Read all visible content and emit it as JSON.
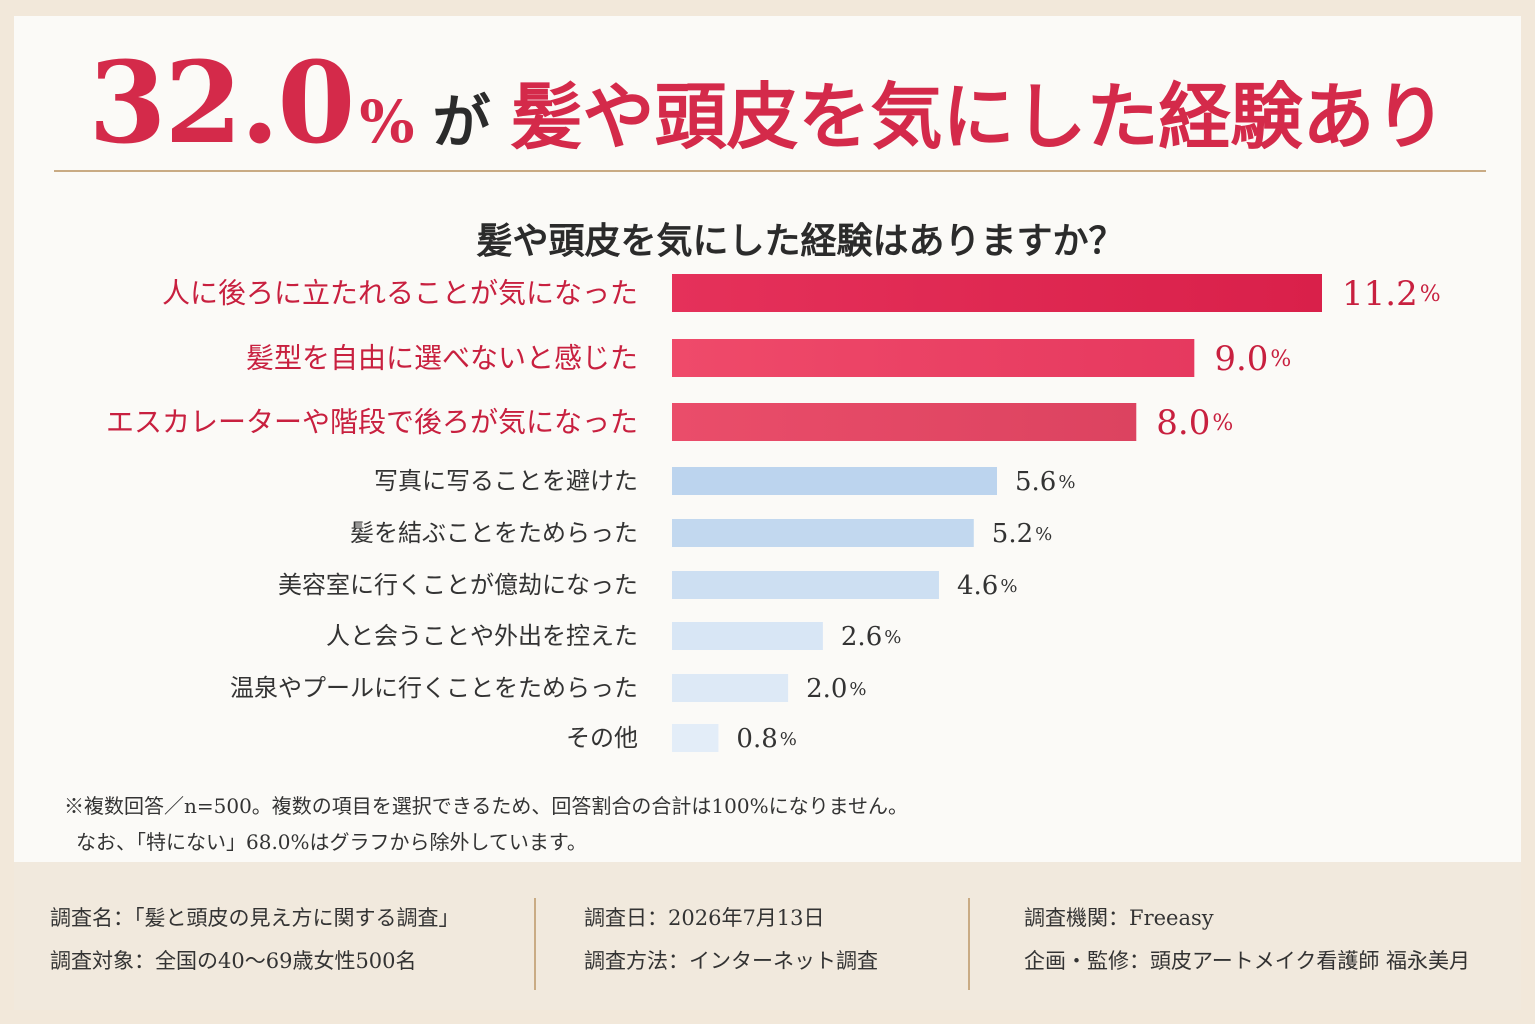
{
  "headline": {
    "number": "32.0",
    "percent": "%",
    "particle": "が",
    "text": "髪や頭皮を気にした経験あり"
  },
  "colors": {
    "highlight": "#e02a52",
    "normal": "#c4d8ef",
    "title_red": "#d42a4a",
    "label_red": "#c8203f"
  },
  "chart_data": {
    "type": "bar",
    "orientation": "horizontal",
    "title": "髪や頭皮を気にした経験はありますか？",
    "unit": "%",
    "categories": [
      "人に後ろに立たれることが気になった",
      "髪型を自由に選べないと感じた",
      "エスカレーターや階段で後ろが気になった",
      "写真に写ることを避けた",
      "髪を結ぶことをためらった",
      "美容室に行くことが億劫になった",
      "人と会うことや外出を控えた",
      "温泉やプールに行くことをためらった",
      "その他"
    ],
    "values": [
      11.2,
      9.0,
      8.0,
      5.6,
      5.2,
      4.6,
      2.6,
      2.0,
      0.8
    ],
    "value_labels": [
      "11.2",
      "9.0",
      "8.0",
      "5.6",
      "5.2",
      "4.6",
      "2.6",
      "2.0",
      "0.8"
    ],
    "highlighted": [
      true,
      true,
      true,
      false,
      false,
      false,
      false,
      false,
      false
    ],
    "xlim": [
      0,
      11.2
    ],
    "grid": false,
    "legend": "none"
  },
  "notes": [
    "※複数回答／n=500。複数の項目を選択できるため、回答割合の合計は100%になりません。",
    "なお、「特にない」68.0%はグラフから除外しています。"
  ],
  "footer": {
    "col1": [
      "調査名：「髪と頭皮の見え方に関する調査」",
      "調査対象：全国の40〜69歳女性500名"
    ],
    "col2": [
      "調査日：2026年7月13日",
      "調査方法：インターネット調査"
    ],
    "col3": [
      "調査機関：Freeasy",
      "企画・監修：頭皮アートメイク看護師 福永美月"
    ]
  }
}
